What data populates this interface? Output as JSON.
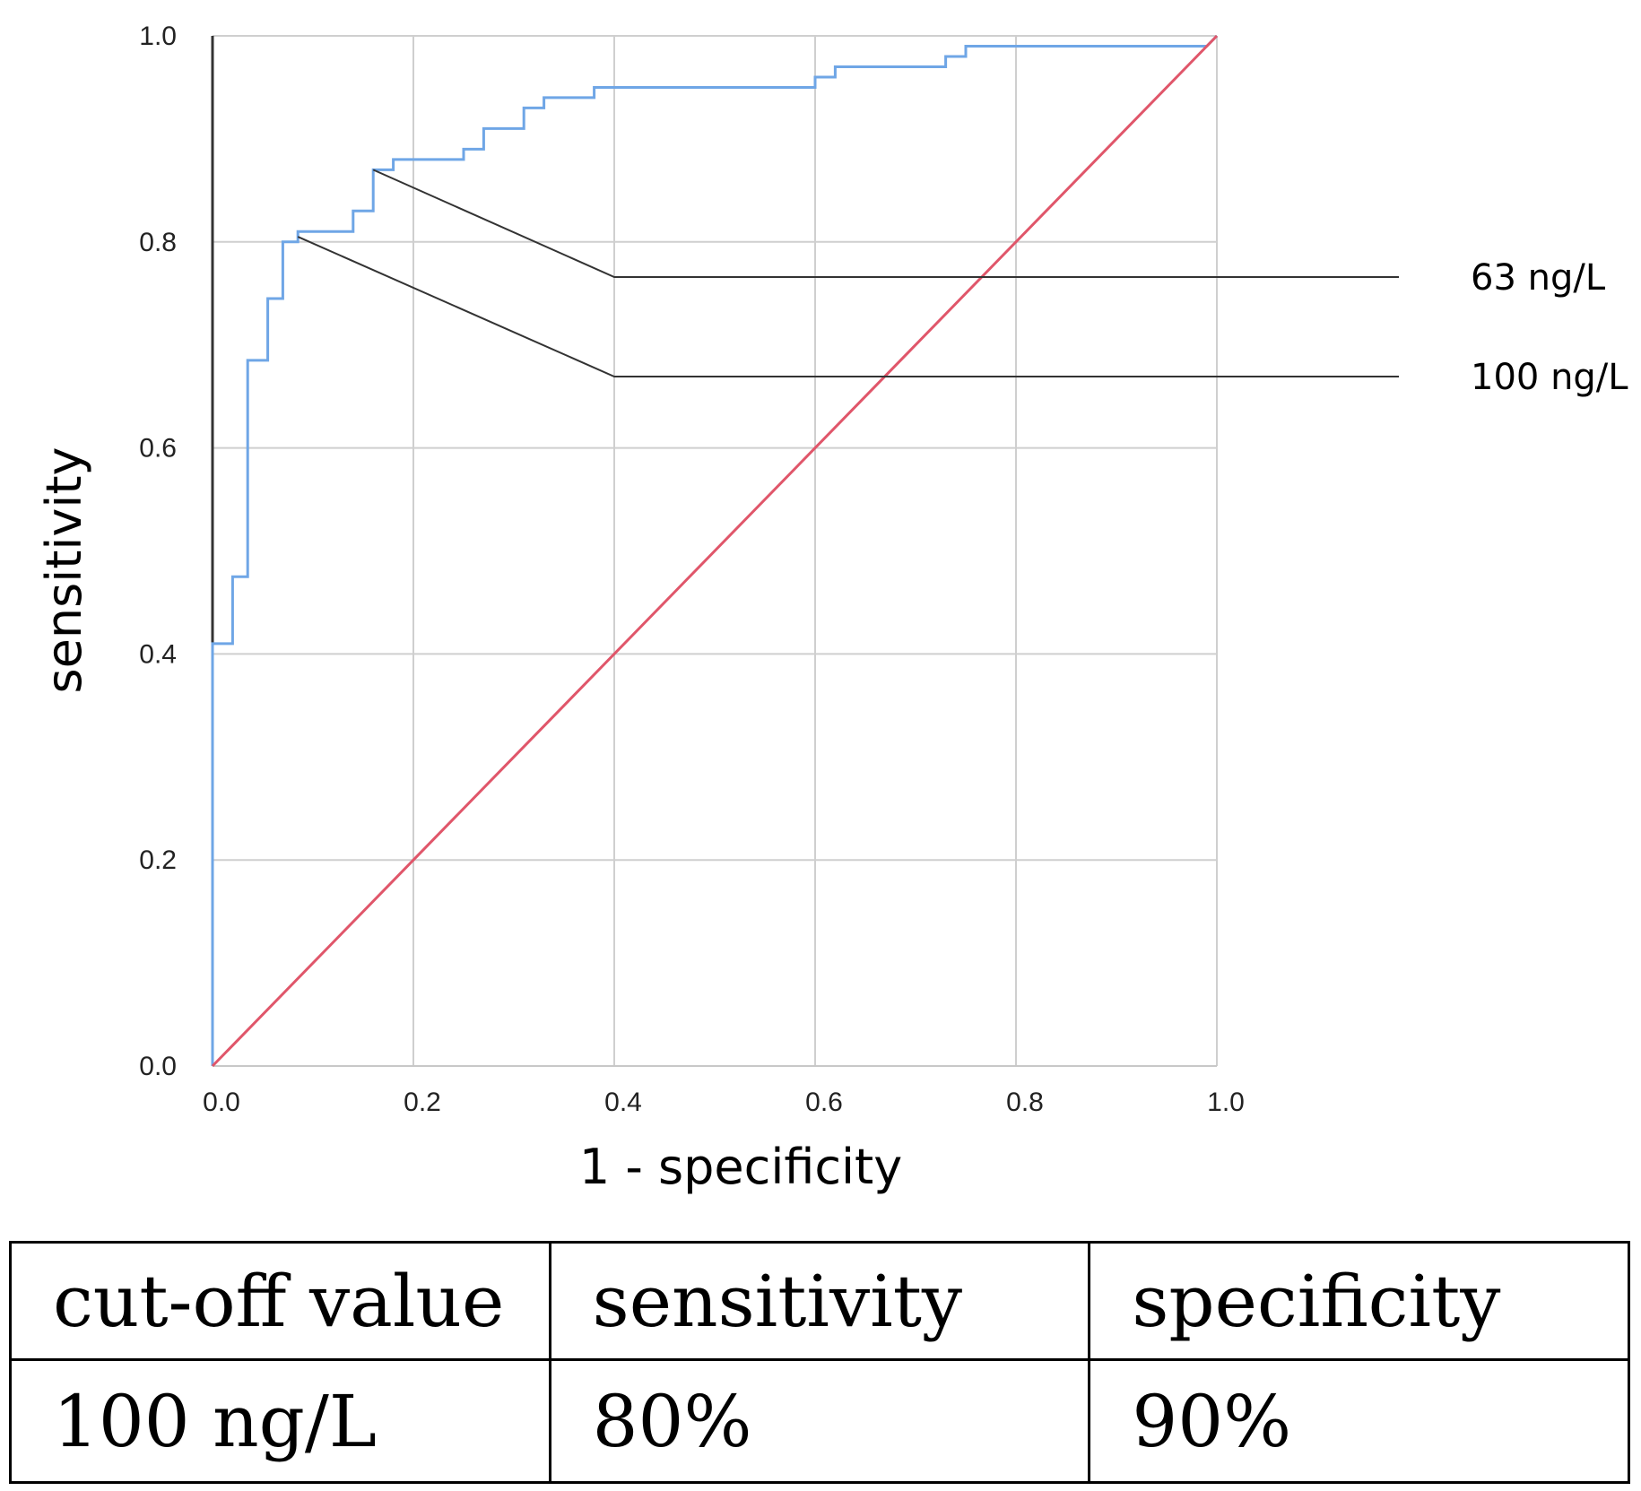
{
  "chart_data": {
    "type": "line",
    "title": "",
    "xlabel": "1 - specificity",
    "ylabel": "sensitivity",
    "xlim": [
      0,
      1
    ],
    "ylim": [
      0,
      1
    ],
    "x_ticks": [
      "0.0",
      "0.2",
      "0.4",
      "0.6",
      "0.8",
      "1.0"
    ],
    "y_ticks": [
      "0.0",
      "0.2",
      "0.4",
      "0.6",
      "0.8",
      "1.0"
    ],
    "grid": true,
    "legend": "none",
    "series": [
      {
        "color": "#6fa6e6",
        "x": [
          0,
          0,
          0.02,
          0.02,
          0.035,
          0.035,
          0.055,
          0.055,
          0.07,
          0.07,
          0.085,
          0.085,
          0.14,
          0.14,
          0.16,
          0.16,
          0.18,
          0.18,
          0.25,
          0.25,
          0.27,
          0.27,
          0.31,
          0.31,
          0.33,
          0.33,
          0.38,
          0.38,
          0.6,
          0.6,
          0.62,
          0.62,
          0.73,
          0.73,
          0.75,
          0.75,
          0.99,
          1.0
        ],
        "y": [
          0,
          0.41,
          0.41,
          0.475,
          0.475,
          0.685,
          0.685,
          0.745,
          0.745,
          0.8,
          0.8,
          0.81,
          0.81,
          0.83,
          0.83,
          0.87,
          0.87,
          0.88,
          0.88,
          0.89,
          0.89,
          0.91,
          0.91,
          0.93,
          0.93,
          0.94,
          0.94,
          0.95,
          0.95,
          0.96,
          0.96,
          0.97,
          0.97,
          0.98,
          0.98,
          0.99,
          0.99,
          1.0
        ]
      },
      {
        "color": "#e0566a",
        "x": [
          0,
          1
        ],
        "y": [
          0,
          1
        ]
      }
    ],
    "annotations": [
      {
        "text": "63 ng/L",
        "x": 0.16,
        "y": 0.87
      },
      {
        "text": "100 ng/L",
        "x": 0.085,
        "y": 0.805
      }
    ]
  },
  "table": {
    "headers": [
      "cut-off value",
      "sensitivity",
      "specificity"
    ],
    "rows": [
      [
        "100 ng/L",
        "80%",
        "90%"
      ]
    ]
  }
}
